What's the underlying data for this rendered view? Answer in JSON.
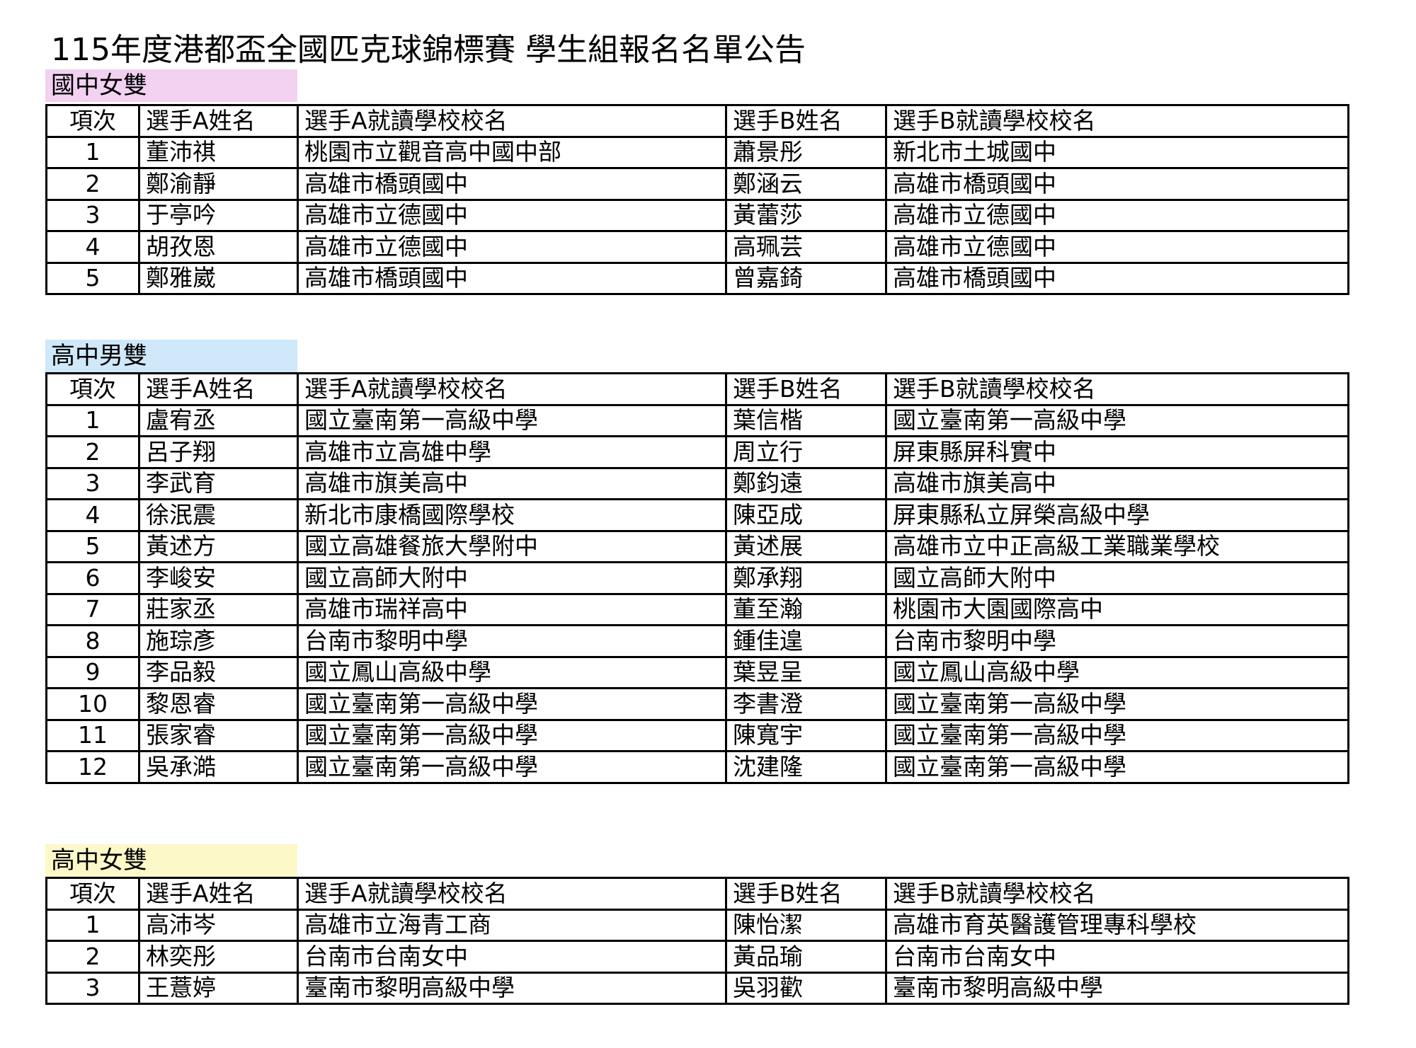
{
  "title": "115年度港都盃全國匹克球錦標賽 學生組報名名單公告",
  "headers": [
    "項次",
    "選手A姓名",
    "選手A就讀學校校名",
    "選手B姓名",
    "選手B就讀學校校名"
  ],
  "colors": {
    "junior_girls": "#f2d2f0",
    "senior_boys": "#cfe8fa",
    "senior_girls": "#fdf8c8"
  },
  "sections": [
    {
      "label": "國中女雙",
      "rows": [
        [
          "1",
          "董沛祺",
          "桃園市立觀音高中國中部",
          "蕭景彤",
          "新北市土城國中"
        ],
        [
          "2",
          "鄭渝靜",
          "高雄市橋頭國中",
          "鄭涵云",
          "高雄市橋頭國中"
        ],
        [
          "3",
          "于亭吟",
          "高雄市立德國中",
          "黃蕾莎",
          "高雄市立德國中"
        ],
        [
          "4",
          "胡孜恩",
          "高雄市立德國中",
          "高珮芸",
          "高雄市立德國中"
        ],
        [
          "5",
          "鄭雅崴",
          "高雄市橋頭國中",
          "曾嘉錡",
          "高雄市橋頭國中"
        ]
      ]
    },
    {
      "label": "高中男雙",
      "rows": [
        [
          "1",
          "盧宥丞",
          "國立臺南第一高級中學",
          "葉信楷",
          "國立臺南第一高級中學"
        ],
        [
          "2",
          "呂子翔",
          "高雄市立高雄中學",
          "周立行",
          "屏東縣屏科實中"
        ],
        [
          "3",
          "李武育",
          "高雄市旗美高中",
          "鄭鈞遠",
          "高雄市旗美高中"
        ],
        [
          "4",
          "徐泯震",
          "新北市康橋國際學校",
          "陳亞成",
          "屏東縣私立屏榮高級中學"
        ],
        [
          "5",
          "黃述方",
          "國立高雄餐旅大學附中",
          "黃述展",
          "高雄市立中正高級工業職業學校"
        ],
        [
          "6",
          "李峻安",
          "國立高師大附中",
          "鄭承翔",
          "國立高師大附中"
        ],
        [
          "7",
          "莊家丞",
          "高雄市瑞祥高中",
          "董至瀚",
          "桃園市大園國際高中"
        ],
        [
          "8",
          "施琮彥",
          "台南市黎明中學",
          "鍾佳遑",
          "台南市黎明中學"
        ],
        [
          "9",
          "李品毅",
          "國立鳳山高級中學",
          "葉昱呈",
          "國立鳳山高級中學"
        ],
        [
          "10",
          "黎恩睿",
          "國立臺南第一高級中學",
          "李書澄",
          "國立臺南第一高級中學"
        ],
        [
          "11",
          "張家睿",
          "國立臺南第一高級中學",
          "陳寬宇",
          "國立臺南第一高級中學"
        ],
        [
          "12",
          "吳承澔",
          "國立臺南第一高級中學",
          "沈建隆",
          "國立臺南第一高級中學"
        ]
      ]
    },
    {
      "label": "高中女雙",
      "rows": [
        [
          "1",
          "高沛岑",
          "高雄市立海青工商",
          "陳怡潔",
          "高雄市育英醫護管理專科學校"
        ],
        [
          "2",
          "林奕彤",
          "台南市台南女中",
          "黃品瑜",
          "台南市台南女中"
        ],
        [
          "3",
          "王薏婷",
          "臺南市黎明高級中學",
          "吳羽歡",
          "臺南市黎明高級中學"
        ]
      ]
    }
  ]
}
